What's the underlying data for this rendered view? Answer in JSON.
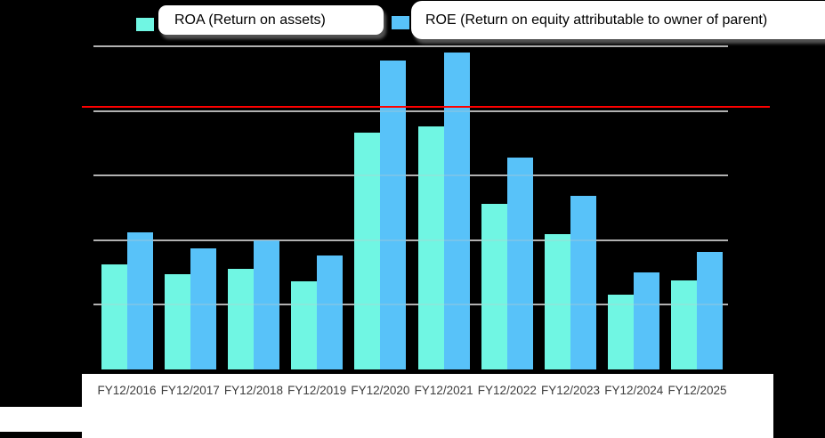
{
  "legend": {
    "items": [
      {
        "label": "ROA (Return on assets)",
        "color": "#70F6E3"
      },
      {
        "label": "ROE (Return on equity attributable to owner of parent)",
        "color": "#58C2F9"
      }
    ]
  },
  "x_axis": {
    "labels": [
      "FY12/2016",
      "FY12/2017",
      "FY12/2018",
      "FY12/2019",
      "FY12/2020",
      "FY12/2021",
      "FY12/2022",
      "FY12/2023",
      "FY12/2024",
      "FY12/2025"
    ]
  },
  "chart_data": {
    "type": "bar",
    "title": "",
    "xlabel": "",
    "ylabel": "",
    "units": "% (estimated from unlabeled gridlines, 5 per gridline)",
    "categories": [
      "FY12/2016",
      "FY12/2017",
      "FY12/2018",
      "FY12/2019",
      "FY12/2020",
      "FY12/2021",
      "FY12/2022",
      "FY12/2023",
      "FY12/2024",
      "FY12/2025"
    ],
    "series": [
      {
        "name": "ROA (Return on assets)",
        "color": "#70F6E3",
        "values": [
          8.1,
          7.4,
          7.8,
          6.8,
          18.3,
          18.8,
          12.8,
          10.5,
          5.8,
          6.9
        ]
      },
      {
        "name": "ROE (Return on equity attributable to owner of parent)",
        "color": "#58C2F9",
        "values": [
          10.6,
          9.4,
          10.0,
          8.8,
          23.9,
          24.5,
          16.4,
          13.4,
          7.5,
          9.1
        ]
      }
    ],
    "ylim": [
      0,
      26.5
    ],
    "gridlines": [
      5,
      10,
      15,
      20,
      25
    ],
    "grid": true,
    "legend_position": "top",
    "reference_line": {
      "value": 20.3,
      "color": "#FF0000"
    },
    "background": "#000000",
    "gridline_color": "#A8A8A8",
    "label_color": "#3D3D3D"
  }
}
